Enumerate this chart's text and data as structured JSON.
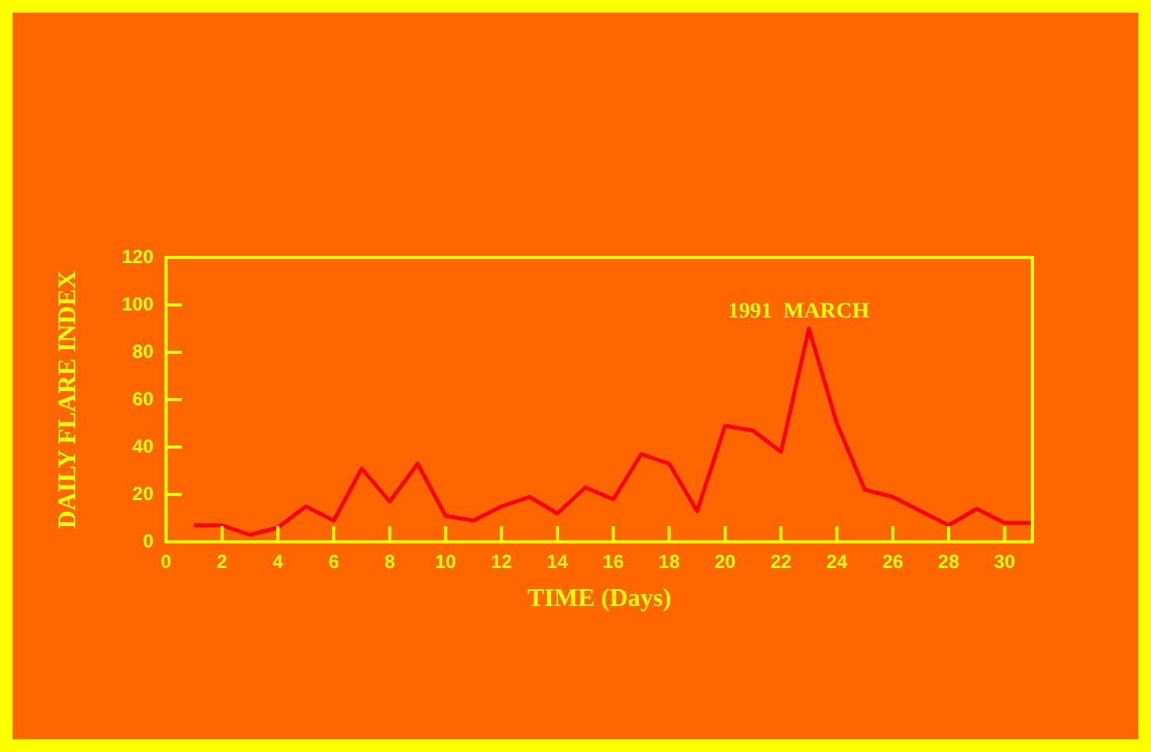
{
  "chart_data": {
    "type": "line",
    "xlabel": "TIME (Days)",
    "ylabel": "DAILY FLARE INDEX",
    "x": [
      1,
      2,
      3,
      4,
      5,
      6,
      7,
      8,
      9,
      10,
      11,
      12,
      13,
      14,
      15,
      16,
      17,
      18,
      19,
      20,
      21,
      22,
      23,
      24,
      25,
      26,
      27,
      28,
      29,
      30,
      31
    ],
    "series": [
      {
        "color": "#ff0000",
        "values": [
          7,
          7,
          3,
          6,
          15,
          9,
          31,
          17,
          33,
          11,
          9,
          15,
          19,
          12,
          23,
          18,
          37,
          33,
          13,
          49,
          47,
          38,
          90,
          50,
          22,
          19,
          13,
          7,
          14,
          8,
          8
        ]
      }
    ],
    "xlim": [
      0,
      31
    ],
    "xticks": [
      0,
      2,
      4,
      6,
      8,
      10,
      12,
      14,
      16,
      18,
      20,
      22,
      24,
      26,
      28,
      30
    ],
    "ylim": [
      0,
      120
    ],
    "yticks": [
      0,
      20,
      40,
      60,
      80,
      100,
      120
    ],
    "annotations": [
      "1991  MARCH"
    ],
    "grid": false,
    "legend": false,
    "marker": "none",
    "line_style": "solid"
  }
}
